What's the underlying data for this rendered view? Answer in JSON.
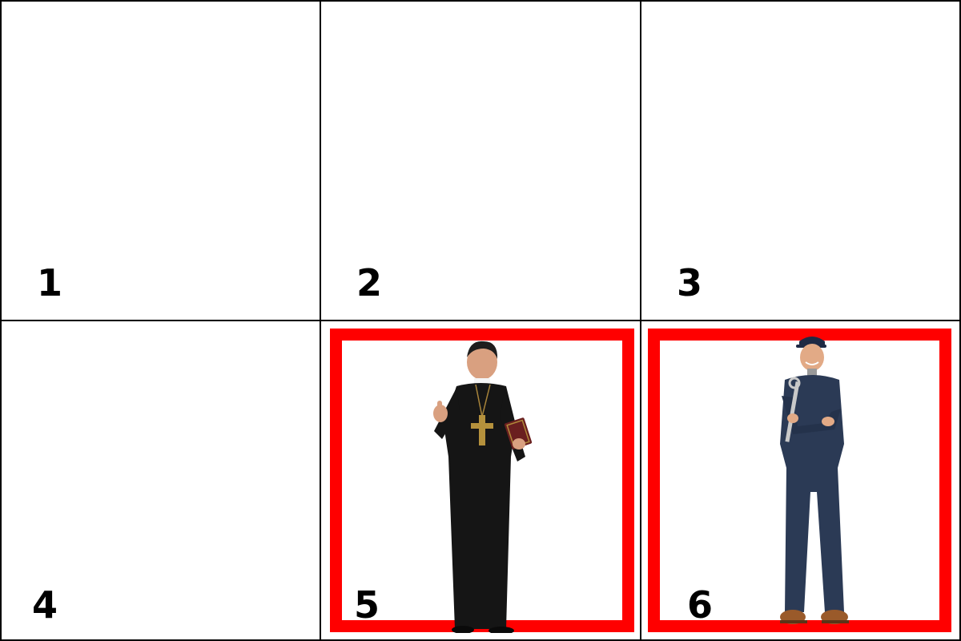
{
  "panels": [
    {
      "number": "1",
      "highlighted": false,
      "figure": null
    },
    {
      "number": "2",
      "highlighted": false,
      "figure": null
    },
    {
      "number": "3",
      "highlighted": false,
      "figure": null
    },
    {
      "number": "4",
      "highlighted": false,
      "figure": null
    },
    {
      "number": "5",
      "highlighted": true,
      "figure": "priest"
    },
    {
      "number": "6",
      "highlighted": true,
      "figure": "mechanic"
    }
  ],
  "colors": {
    "highlight_border": "#ff0000",
    "grid_line": "#000000",
    "background": "#ffffff"
  }
}
